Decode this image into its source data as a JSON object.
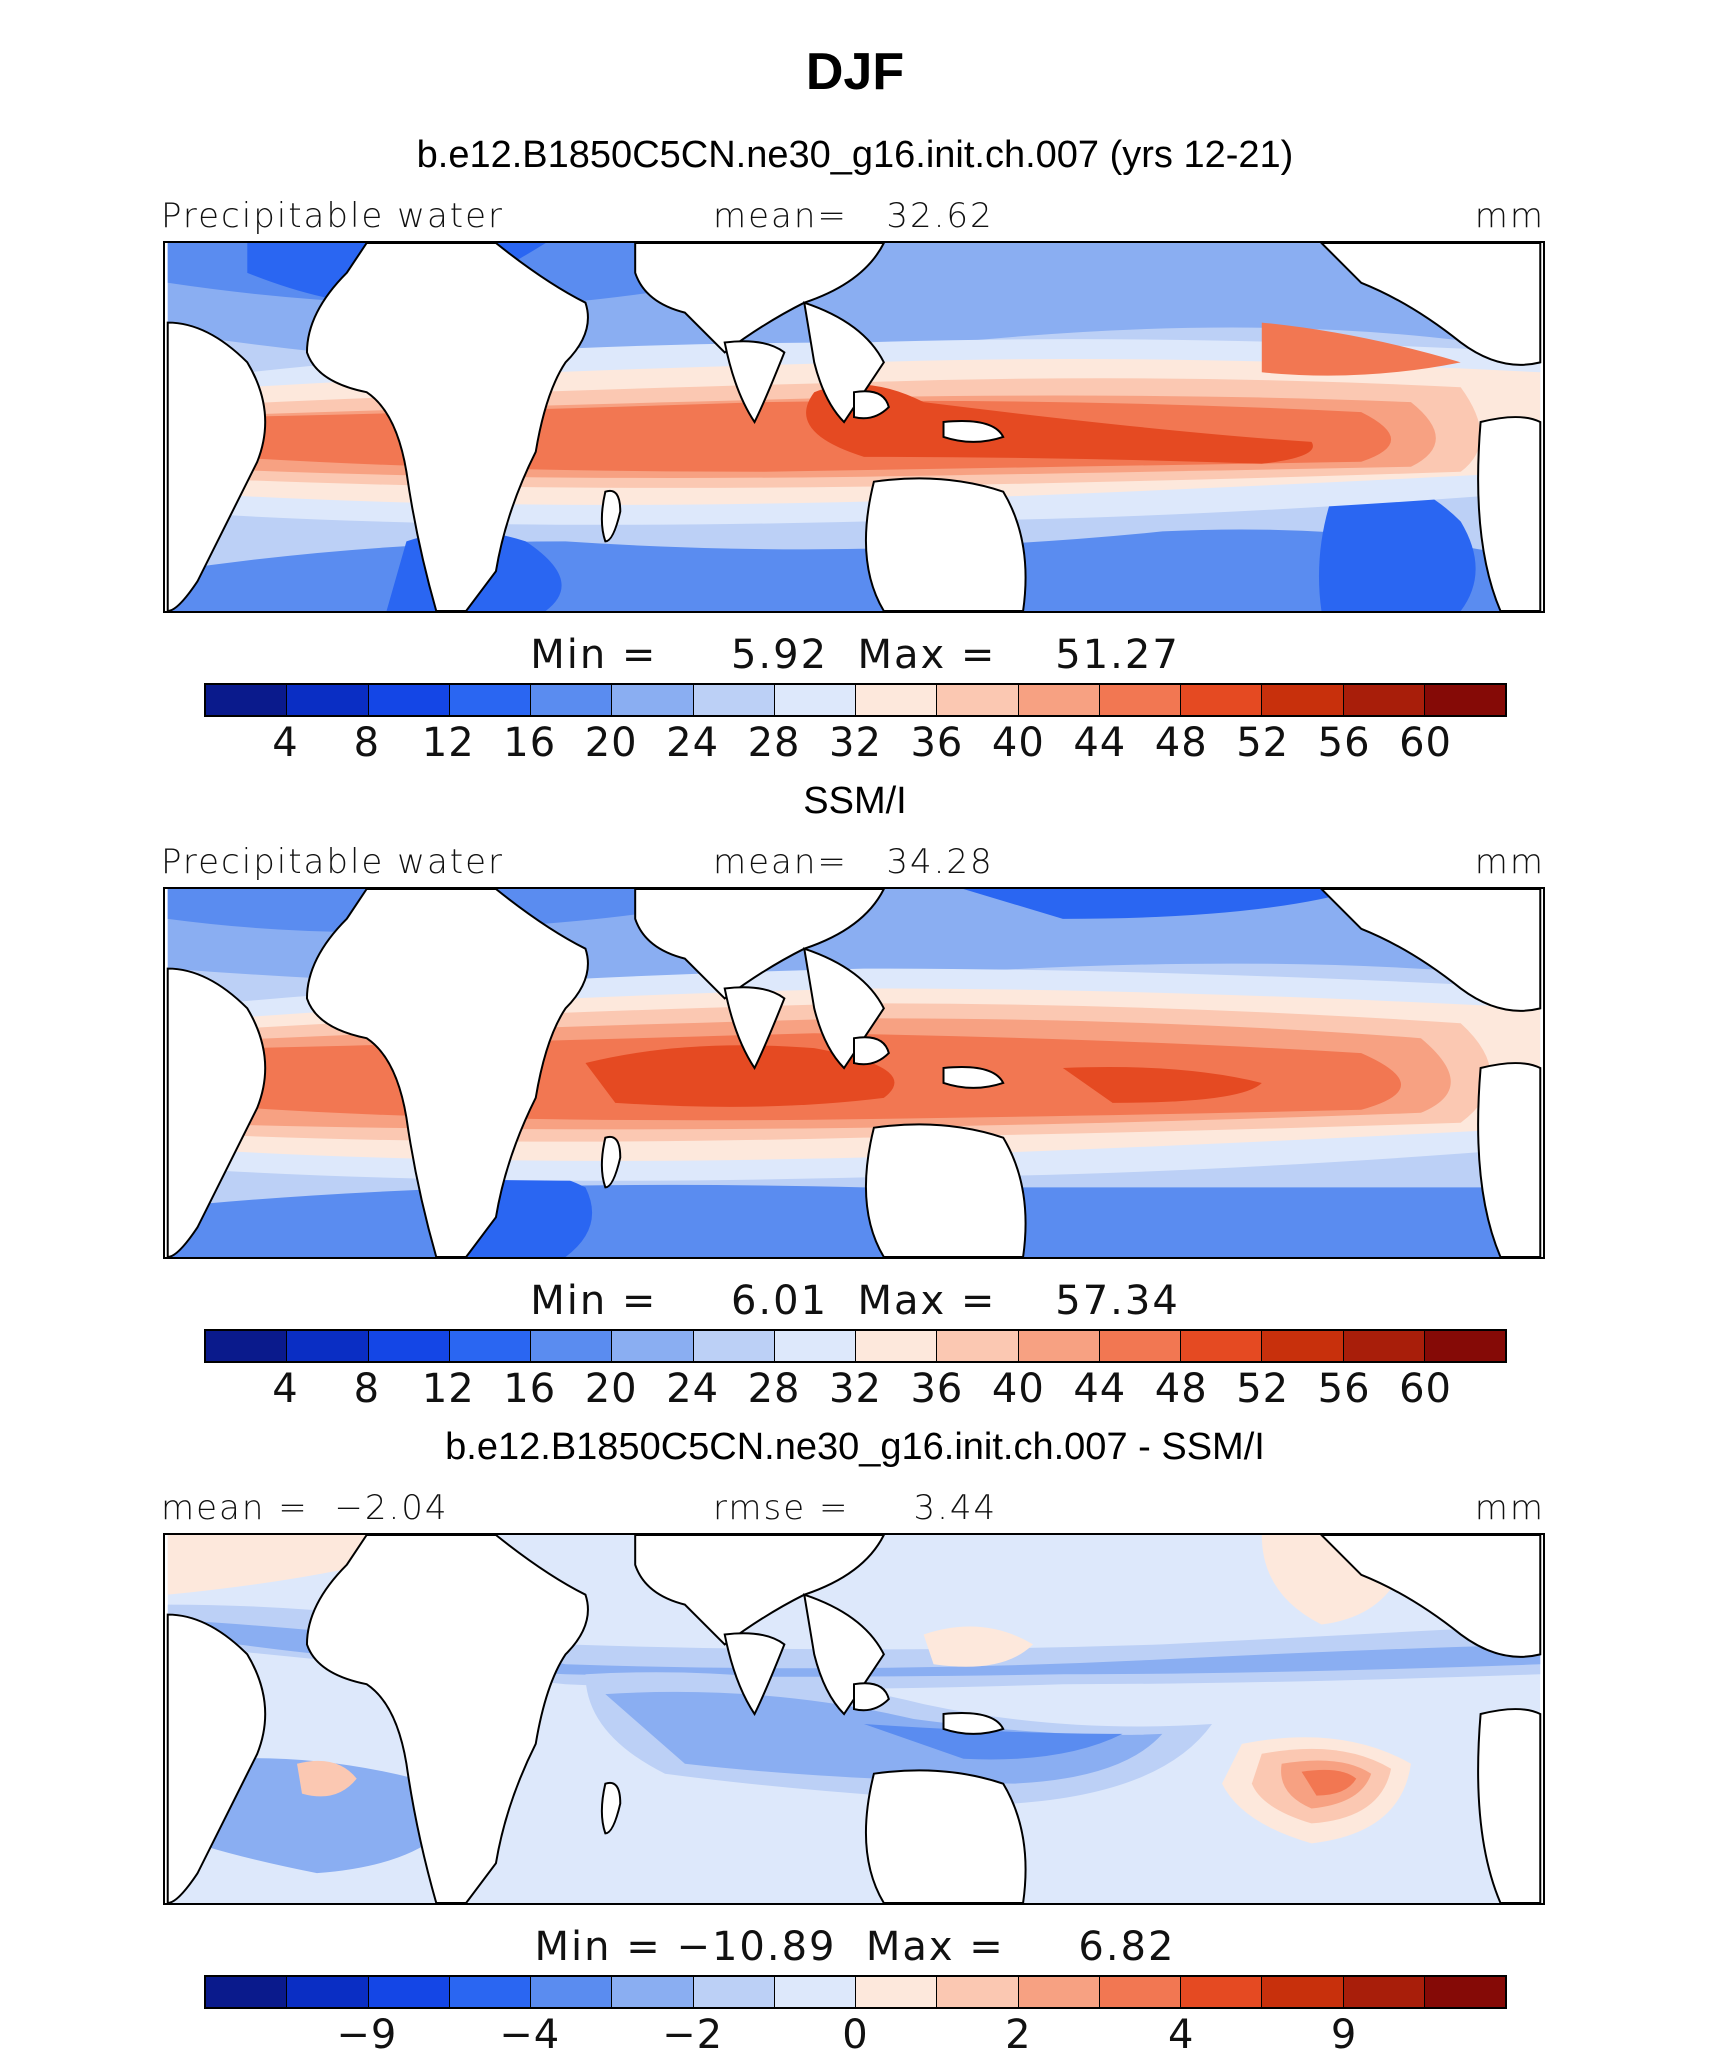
{
  "page": {
    "title": "DJF"
  },
  "colors": [
    "#0a1a8c",
    "#0a2ec4",
    "#1446e6",
    "#2a66f2",
    "#5a8cf0",
    "#8aaef2",
    "#bcd0f6",
    "#dde8fb",
    "#fde8dc",
    "#fbc8b2",
    "#f7a182",
    "#f27752",
    "#e54a22",
    "#c8300c",
    "#a81e0a",
    "#850a06"
  ],
  "chart_data": [
    {
      "type": "contour-map",
      "title": "b.e12.B1850C5CN.ne30_g16.init.ch.007 (yrs 12-21)",
      "variable": "Precipitable water",
      "stat_left": "",
      "stat_center": "mean=   32.62",
      "units": "mm",
      "min_max": "Min =     5.92  Max =    51.27",
      "colorbar_ticks": [
        "4",
        "8",
        "12",
        "16",
        "20",
        "24",
        "28",
        "32",
        "36",
        "40",
        "44",
        "48",
        "52",
        "56",
        "60"
      ]
    },
    {
      "type": "contour-map",
      "title": "SSM/I",
      "variable": "Precipitable water",
      "stat_left": "",
      "stat_center": "mean=   34.28",
      "units": "mm",
      "min_max": "Min =     6.01  Max =    57.34",
      "colorbar_ticks": [
        "4",
        "8",
        "12",
        "16",
        "20",
        "24",
        "28",
        "32",
        "36",
        "40",
        "44",
        "48",
        "52",
        "56",
        "60"
      ]
    },
    {
      "type": "contour-map",
      "title": "b.e12.B1850C5CN.ne30_g16.init.ch.007 - SSM/I",
      "variable": "",
      "stat_left": "mean =  −2.04",
      "stat_center": "rmse =     3.44",
      "units": "mm",
      "min_max": "Min = −10.89  Max =     6.82",
      "colorbar_ticks": [
        "−9",
        "−4",
        "−2",
        "0",
        "2",
        "4",
        "9"
      ]
    }
  ]
}
